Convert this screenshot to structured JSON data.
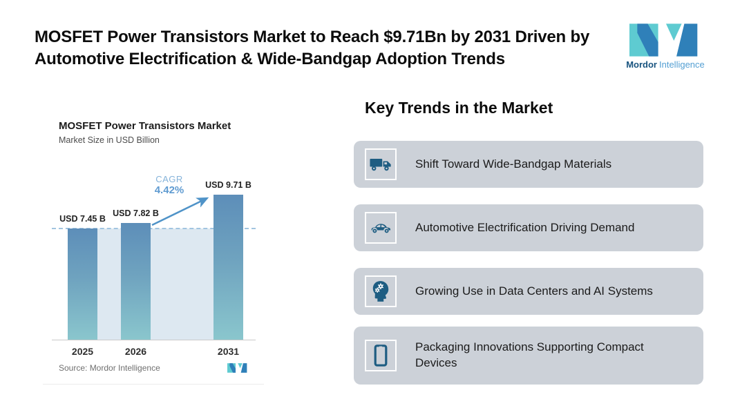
{
  "header": {
    "title": "MOSFET Power Transistors Market to Reach $9.71Bn by 2031 Driven by Automotive Electrification & Wide-Bandgap Adoption Trends",
    "brand": {
      "name_bold": "Mordor",
      "name_light": "Intelligence"
    }
  },
  "chart": {
    "title": "MOSFET Power Transistors Market",
    "subtitle": "Market Size in USD Billion",
    "cagr_label": "CAGR",
    "cagr_value": "4.42%",
    "source": "Source: Mordor Intelligence"
  },
  "chart_data": {
    "type": "bar",
    "title": "MOSFET Power Transistors Market",
    "subtitle": "Market Size in USD Billion",
    "categories": [
      "2025",
      "2026",
      "2031"
    ],
    "values": [
      7.45,
      7.82,
      9.71
    ],
    "bar_labels": [
      "USD 7.45 B",
      "USD 7.82 B",
      "USD 9.71 B"
    ],
    "ylabel": "USD Billion",
    "ylim": [
      0,
      10.5
    ],
    "grid": false,
    "annotations": {
      "cagr_label": "CAGR",
      "cagr_value": "4.42%",
      "dashed_reference_at": 7.45
    },
    "colors": {
      "bar_gradient_top": "#5d8eb9",
      "bar_gradient_bottom": "#8ac6cd",
      "background_panel": "#dde8f1",
      "dashed_line": "#a2c5e0",
      "arrow": "#4f93c8"
    }
  },
  "trends": {
    "heading": "Key Trends in the Market",
    "items": [
      {
        "icon": "truck-icon",
        "label": "Shift Toward Wide-Bandgap Materials"
      },
      {
        "icon": "car-icon",
        "label": "Automotive Electrification Driving Demand"
      },
      {
        "icon": "head-gears-icon",
        "label": "Growing Use in Data Centers and AI Systems"
      },
      {
        "icon": "smartphone-icon",
        "label": "Packaging Innovations Supporting Compact Devices"
      }
    ],
    "card_color": "#ccd1d8",
    "icon_color": "#1e5d82"
  }
}
